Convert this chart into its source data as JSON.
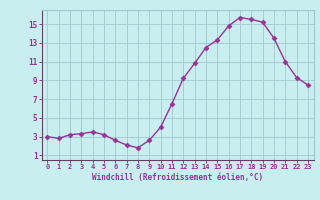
{
  "x": [
    0,
    1,
    2,
    3,
    4,
    5,
    6,
    7,
    8,
    9,
    10,
    11,
    12,
    13,
    14,
    15,
    16,
    17,
    18,
    19,
    20,
    21,
    22,
    23
  ],
  "y": [
    3.0,
    2.8,
    3.2,
    3.3,
    3.5,
    3.2,
    2.6,
    2.1,
    1.8,
    2.6,
    4.0,
    6.5,
    9.2,
    10.8,
    12.5,
    13.3,
    14.8,
    15.7,
    15.5,
    15.2,
    13.5,
    11.0,
    9.3,
    8.5
  ],
  "line_color": "#993399",
  "marker": "D",
  "marker_size": 2.5,
  "line_width": 1.0,
  "xlabel": "Windchill (Refroidissement éolien,°C)",
  "ylabel": "",
  "title": "",
  "xlim": [
    -0.5,
    23.5
  ],
  "ylim": [
    0.5,
    16.5
  ],
  "yticks": [
    1,
    3,
    5,
    7,
    9,
    11,
    13,
    15
  ],
  "xticks": [
    0,
    1,
    2,
    3,
    4,
    5,
    6,
    7,
    8,
    9,
    10,
    11,
    12,
    13,
    14,
    15,
    16,
    17,
    18,
    19,
    20,
    21,
    22,
    23
  ],
  "background_color": "#c8eef0",
  "grid_color": "#a0c8d0",
  "tick_color": "#993399",
  "label_color": "#993399",
  "spine_color": "#604060",
  "font": "monospace"
}
